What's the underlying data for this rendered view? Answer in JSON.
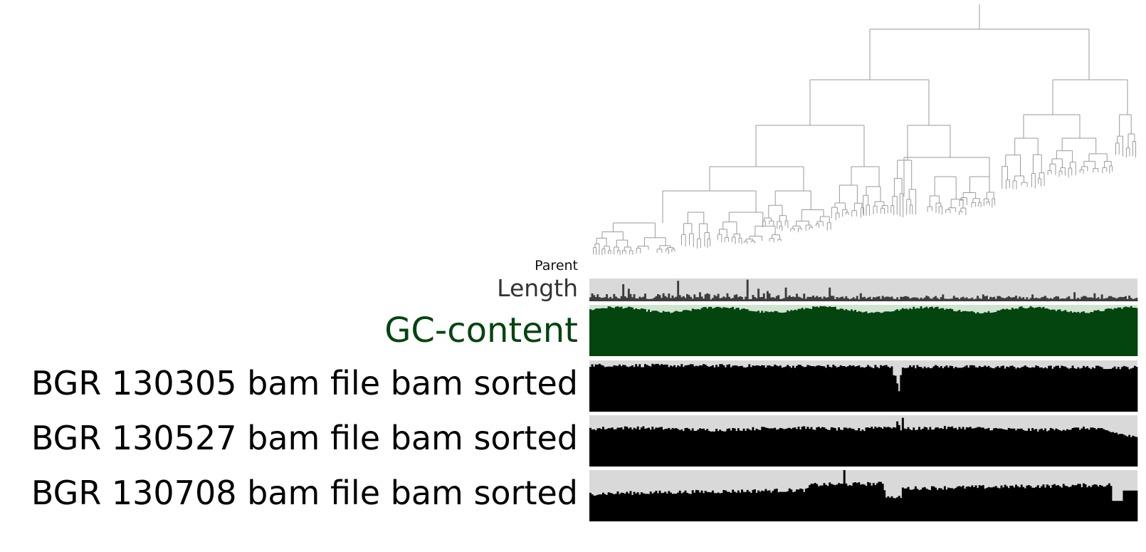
{
  "labels": {
    "parent": "Parent",
    "length": "Length",
    "gc": "GC-content",
    "sample1": "BGR 130305 bam file bam sorted",
    "sample2": "BGR 130527 bam file bam sorted",
    "sample3": "BGR 130708 bam file bam sorted"
  },
  "colors": {
    "dendrogram": "#9a9a9a",
    "track_background": "#d9d9d9",
    "length_bars": "#3d3d3d",
    "gc_background": "#d0e4d2",
    "gc_bars": "#04440f",
    "coverage_bars": "#000000"
  }
}
